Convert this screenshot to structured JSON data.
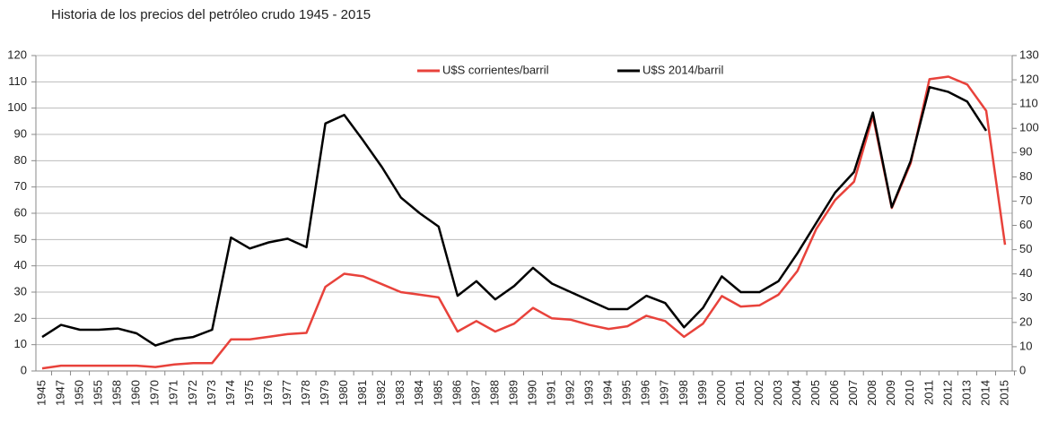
{
  "chart_data": {
    "type": "line",
    "title": "Historia de los precios del petróleo crudo 1945 - 2015",
    "categories": [
      "1945",
      "1947",
      "1950",
      "1955",
      "1958",
      "1960",
      "1970",
      "1971",
      "1972",
      "1973",
      "1974",
      "1975",
      "1976",
      "1977",
      "1978",
      "1979",
      "1980",
      "1981",
      "1982",
      "1983",
      "1984",
      "1985",
      "1986",
      "1987",
      "1988",
      "1989",
      "1990",
      "1991",
      "1992",
      "1993",
      "1994",
      "1995",
      "1996",
      "1997",
      "1998",
      "1999",
      "2000",
      "2001",
      "2002",
      "2003",
      "2004",
      "2005",
      "2006",
      "2007",
      "2008",
      "2009",
      "2010",
      "2011",
      "2012",
      "2013",
      "2014",
      "2015"
    ],
    "series": [
      {
        "name": "U$S corrientes/barril",
        "color": "#e8423b",
        "axis": "y",
        "values": [
          1,
          2,
          2,
          2,
          2,
          2,
          1.5,
          2.5,
          3,
          3,
          12,
          12,
          13,
          14,
          14.5,
          32,
          37,
          36,
          33,
          30,
          29,
          28,
          15,
          19,
          15,
          18,
          24,
          20,
          19.5,
          17.5,
          16,
          17,
          21,
          19,
          13,
          18,
          28.5,
          24.5,
          25,
          29,
          38,
          54,
          65,
          72,
          97,
          62,
          79,
          111,
          112,
          109,
          99,
          48
        ]
      },
      {
        "name": "U$S 2014/barril",
        "color": "#000000",
        "axis": "y2",
        "values": [
          14,
          19,
          17,
          17,
          17.5,
          15.5,
          10.5,
          13,
          14,
          17,
          55,
          50.5,
          53,
          54.5,
          51,
          102,
          105.5,
          95,
          84,
          71.5,
          65,
          59.5,
          31,
          37,
          29.5,
          35,
          42.5,
          36,
          32.5,
          29,
          25.5,
          25.5,
          31,
          28,
          18,
          26,
          39,
          32.5,
          32.5,
          37,
          48.5,
          61,
          73.5,
          82,
          106.5,
          67.5,
          86.5,
          117,
          115,
          111,
          99,
          null
        ]
      }
    ],
    "ylim": [
      0,
      120
    ],
    "yticks": [
      0,
      10,
      20,
      30,
      40,
      50,
      60,
      70,
      80,
      90,
      100,
      110,
      120
    ],
    "y2lim": [
      0,
      130
    ],
    "y2ticks": [
      0,
      10,
      20,
      30,
      40,
      50,
      60,
      70,
      80,
      90,
      100,
      110,
      120,
      130
    ],
    "grid": true,
    "legend": "top"
  }
}
